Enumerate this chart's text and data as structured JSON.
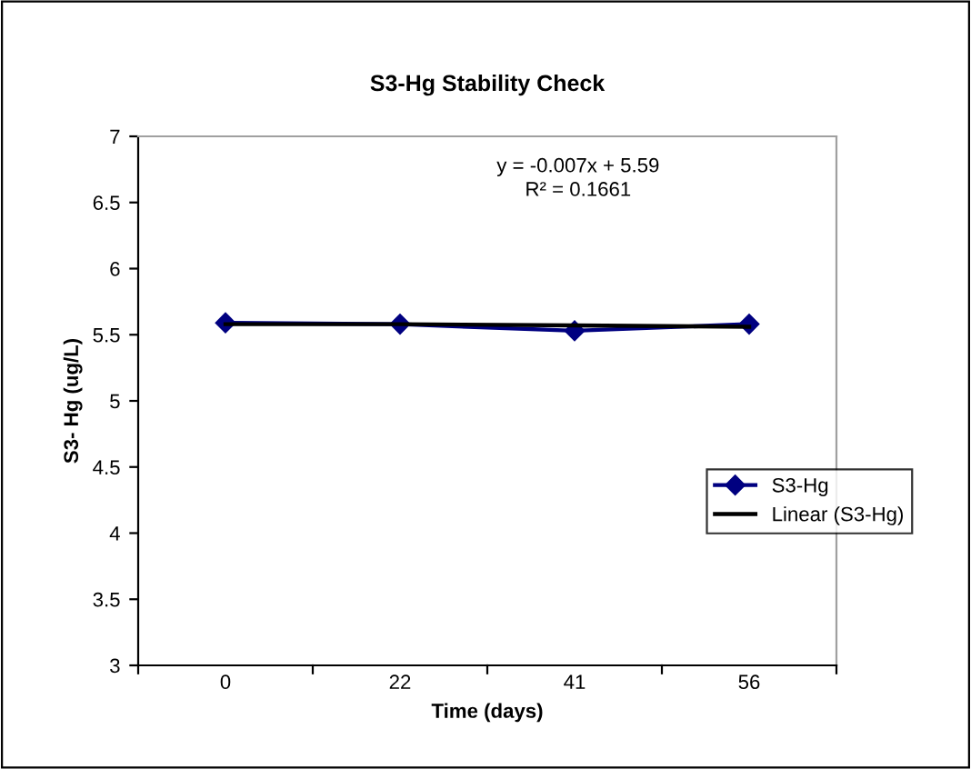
{
  "chart_data": {
    "type": "line",
    "title": "S3-Hg Stability Check",
    "xlabel": "Time (days)",
    "ylabel": "S3- Hg (ug/L)",
    "categories": [
      "0",
      "22",
      "41",
      "56"
    ],
    "series": [
      {
        "name": "S3-Hg",
        "color": "#000080",
        "values": [
          5.59,
          5.58,
          5.53,
          5.58
        ],
        "marker": "diamond"
      },
      {
        "name": "Linear (S3-Hg)",
        "color": "#000000",
        "values": [
          5.58,
          5.58,
          5.57,
          5.56
        ],
        "marker": "none"
      }
    ],
    "ylim": [
      3,
      7
    ],
    "yticks": [
      3,
      3.5,
      4,
      4.5,
      5,
      5.5,
      6,
      6.5,
      7
    ],
    "annotations": [
      "y = -0.007x + 5.59",
      "R² = 0.1661"
    ],
    "grid": false,
    "legend": "right"
  }
}
